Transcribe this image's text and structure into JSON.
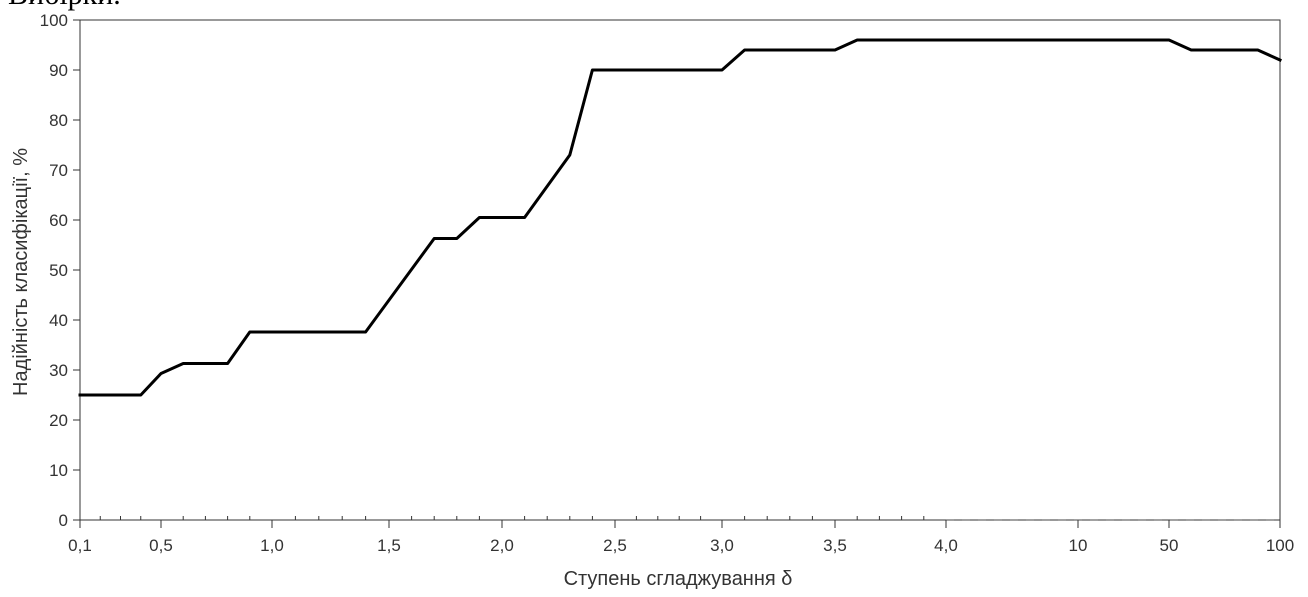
{
  "top_text_fragment": "Вибірки.",
  "chart_data": {
    "type": "line",
    "title": "",
    "xlabel": "Ступень сгладжування δ",
    "ylabel": "Надійність класифікації, %",
    "ylim": [
      0,
      100
    ],
    "yticks": [
      "0",
      "10",
      "20",
      "30",
      "40",
      "50",
      "60",
      "70",
      "80",
      "90",
      "100"
    ],
    "xticks": [
      "0,1",
      "0,5",
      "1,0",
      "1,5",
      "2,0",
      "2,5",
      "3,0",
      "3,5",
      "4,0",
      "10",
      "50",
      "100"
    ],
    "grid": false,
    "line_color": "#000000",
    "axis_color": "#333333",
    "series": [
      {
        "x": [
          0.1,
          0.4,
          0.5,
          0.6,
          0.8,
          0.9,
          1.4,
          1.7,
          1.8,
          1.9,
          2.1,
          2.3,
          2.4,
          3.0,
          3.1,
          3.5,
          3.6,
          4.0,
          10,
          50,
          60,
          90,
          100
        ],
        "y": [
          25,
          25,
          29.3,
          31.3,
          31.3,
          37.6,
          37.6,
          56.3,
          56.3,
          60.5,
          60.5,
          73,
          90,
          90,
          94,
          94,
          96,
          96,
          96,
          96,
          94,
          94,
          92
        ]
      }
    ]
  }
}
